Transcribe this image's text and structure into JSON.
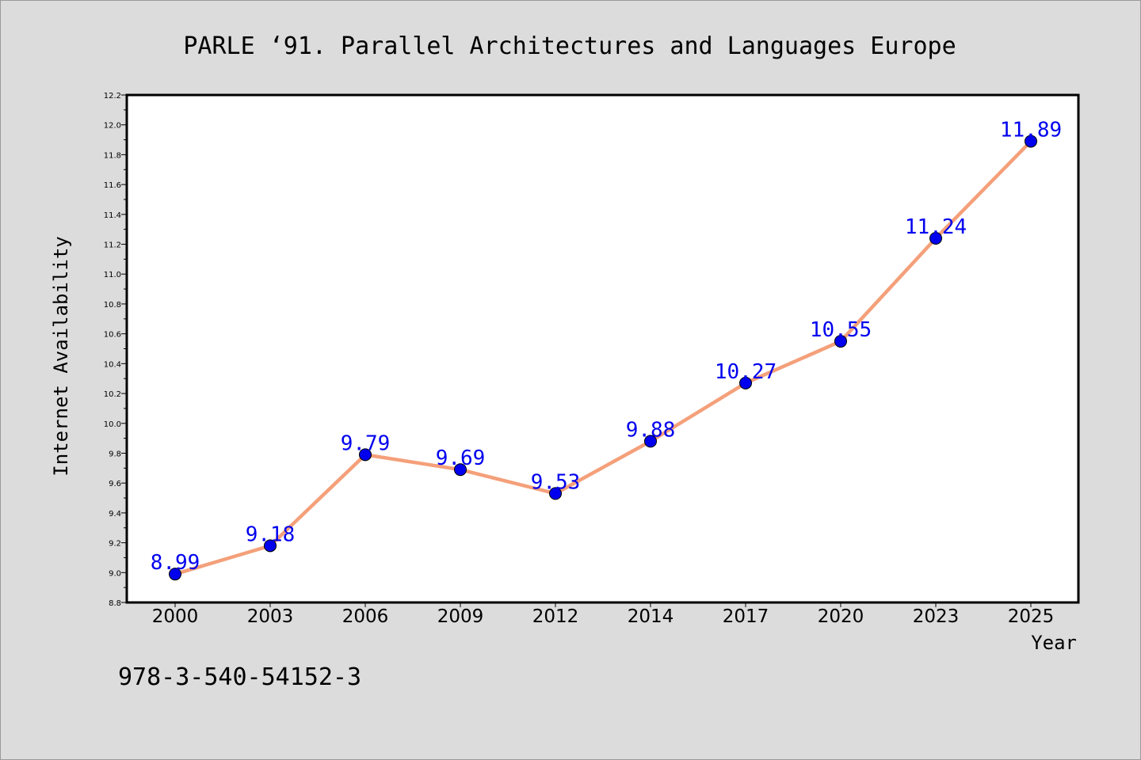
{
  "chart_data": {
    "type": "line",
    "title": "PARLE  ‘91. Parallel Architectures and Languages Europe",
    "xlabel": "Year",
    "ylabel": "Internet Availability",
    "categories": [
      "2000",
      "2003",
      "2006",
      "2009",
      "2012",
      "2014",
      "2017",
      "2020",
      "2023",
      "2025"
    ],
    "series": [
      {
        "values": [
          8.99,
          9.18,
          9.79,
          9.69,
          9.53,
          9.88,
          10.27,
          10.55,
          11.24,
          11.89
        ]
      }
    ],
    "data_labels": [
      "8.99",
      "9.18",
      "9.79",
      "9.69",
      "9.53",
      "9.88",
      "10.27",
      "10.55",
      "11.24",
      "11.89"
    ],
    "ylim": [
      8.8,
      12.2
    ],
    "yticks": [
      "8.8",
      "9.0",
      "9.2",
      "9.4",
      "9.6",
      "9.8",
      "10.0",
      "10.2",
      "10.4",
      "10.6",
      "10.8",
      "11.0",
      "11.2",
      "11.4",
      "11.6",
      "11.8",
      "12.0",
      "12.2"
    ],
    "grid": false,
    "line_color": "#f4a07a",
    "marker_color": "#0000ee",
    "label_color": "#0000ee",
    "plot_background": "#ffffff",
    "page_background": "#dcdcdc"
  },
  "footnote": "978-3-540-54152-3"
}
